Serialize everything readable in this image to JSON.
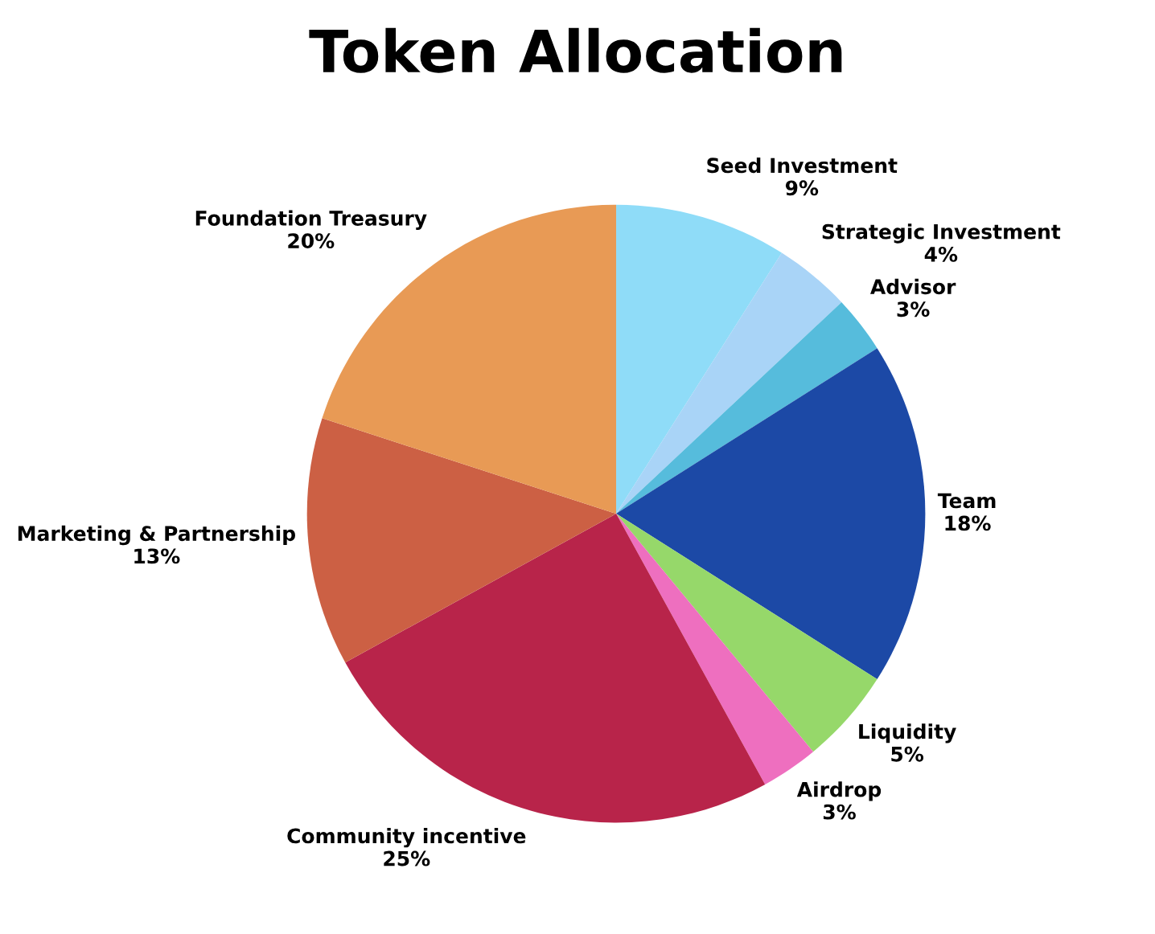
{
  "chart_data": {
    "type": "pie",
    "title": "Token Allocation",
    "categories": [
      "Seed Investment",
      "Strategic Investment",
      "Advisor",
      "Team",
      "Liquidity",
      "Airdrop",
      "Community incentive",
      "Marketing & Partnership",
      "Foundation Treasury"
    ],
    "values": [
      9,
      4,
      3,
      18,
      5,
      3,
      25,
      13,
      20
    ],
    "value_labels": [
      "9%",
      "4%",
      "3%",
      "18%",
      "5%",
      "3%",
      "25%",
      "13%",
      "20%"
    ],
    "colors": [
      "#8fdcf8",
      "#a9d4f7",
      "#56bcdc",
      "#1c49a6",
      "#96d86a",
      "#ee6fbf",
      "#b8244a",
      "#cc6044",
      "#e89a55"
    ],
    "legend": false
  }
}
